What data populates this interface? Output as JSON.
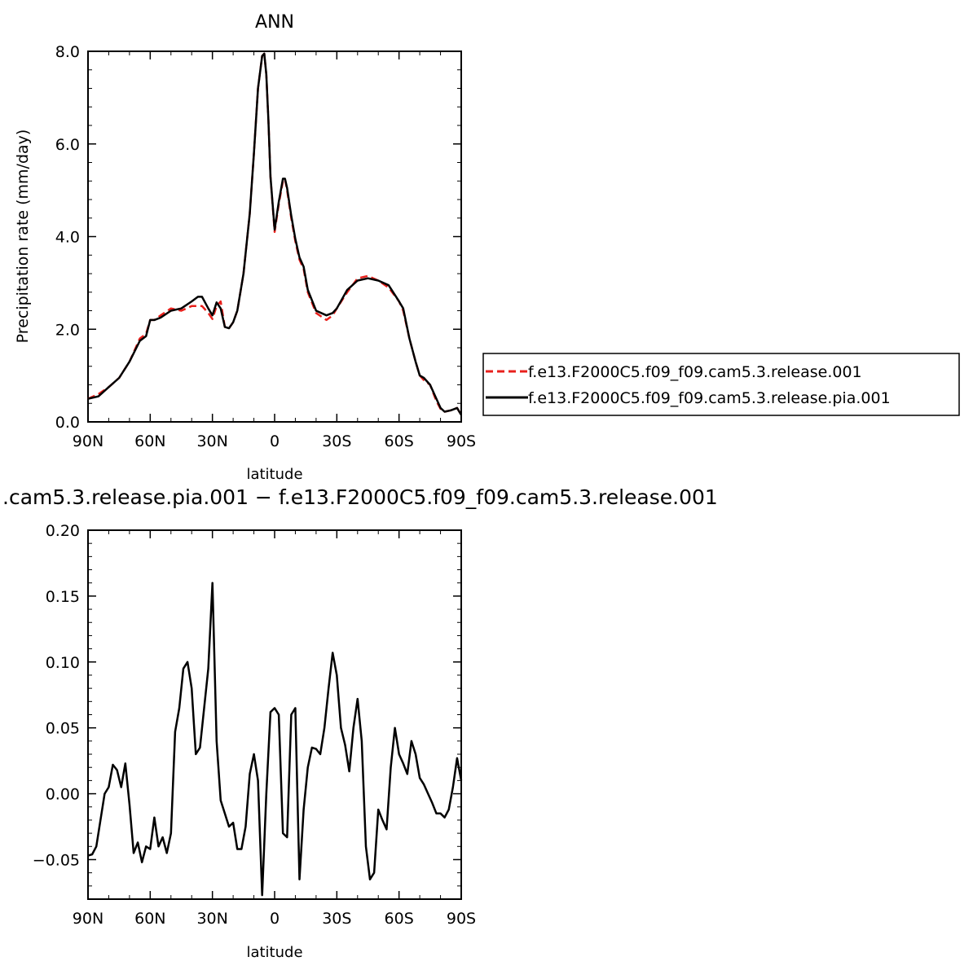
{
  "chart_data": [
    {
      "type": "line",
      "title": "ANN",
      "xlabel": "latitude",
      "ylabel": "Precipitation rate (mm/day)",
      "xlim": [
        -90,
        90
      ],
      "ylim": [
        0,
        8
      ],
      "xticks": [
        {
          "value": -90,
          "label": "90N"
        },
        {
          "value": -60,
          "label": "60N"
        },
        {
          "value": -30,
          "label": "30N"
        },
        {
          "value": 0,
          "label": "0"
        },
        {
          "value": 30,
          "label": "30S"
        },
        {
          "value": 60,
          "label": "60S"
        },
        {
          "value": 90,
          "label": "90S"
        }
      ],
      "yticks": [
        {
          "value": 0,
          "label": "0.0"
        },
        {
          "value": 2,
          "label": "2.0"
        },
        {
          "value": 4,
          "label": "4.0"
        },
        {
          "value": 6,
          "label": "6.0"
        },
        {
          "value": 8,
          "label": "8.0"
        }
      ],
      "legend_position": "right",
      "series": [
        {
          "name": "f.e13.F2000C5.f09_f09.cam5.3.release.001",
          "color": "#e8201c",
          "dash": "dashed",
          "x": [
            -90,
            -85,
            -80,
            -75,
            -70,
            -65,
            -62,
            -60,
            -58,
            -55,
            -50,
            -45,
            -40,
            -37,
            -35,
            -32,
            -30,
            -28,
            -26,
            -24,
            -22,
            -20,
            -18,
            -15,
            -12,
            -10,
            -8,
            -6,
            -5,
            -4,
            -3,
            -2,
            0,
            2,
            4,
            5,
            6,
            8,
            10,
            12,
            14,
            16,
            20,
            25,
            28,
            30,
            35,
            40,
            45,
            50,
            55,
            60,
            62,
            65,
            68,
            70,
            72,
            75,
            78,
            80,
            82,
            85,
            88,
            90
          ],
          "y": [
            0.5,
            0.6,
            0.75,
            0.95,
            1.3,
            1.8,
            1.9,
            2.2,
            2.2,
            2.3,
            2.45,
            2.4,
            2.5,
            2.5,
            2.5,
            2.35,
            2.22,
            2.5,
            2.6,
            2.05,
            2.02,
            2.15,
            2.4,
            3.2,
            4.5,
            5.8,
            7.2,
            7.9,
            7.95,
            7.5,
            6.5,
            5.3,
            4.1,
            4.7,
            5.2,
            5.25,
            5.0,
            4.4,
            3.9,
            3.5,
            3.3,
            2.8,
            2.35,
            2.2,
            2.3,
            2.45,
            2.8,
            3.1,
            3.15,
            3.05,
            2.9,
            2.6,
            2.4,
            1.8,
            1.3,
            1.0,
            0.9,
            0.8,
            0.45,
            0.28,
            0.22,
            0.25,
            0.3,
            0.15
          ]
        },
        {
          "name": "f.e13.F2000C5.f09_f09.cam5.3.release.pia.001",
          "color": "#000000",
          "dash": "solid",
          "x": [
            -90,
            -85,
            -80,
            -75,
            -70,
            -65,
            -62,
            -60,
            -58,
            -55,
            -50,
            -45,
            -40,
            -37,
            -35,
            -32,
            -30,
            -28,
            -26,
            -24,
            -22,
            -20,
            -18,
            -15,
            -12,
            -10,
            -8,
            -6,
            -5,
            -4,
            -3,
            -2,
            0,
            2,
            4,
            5,
            6,
            8,
            10,
            12,
            14,
            16,
            20,
            25,
            28,
            30,
            35,
            40,
            45,
            50,
            55,
            60,
            62,
            65,
            68,
            70,
            72,
            75,
            78,
            80,
            82,
            85,
            88,
            90
          ],
          "y": [
            0.5,
            0.55,
            0.75,
            0.95,
            1.3,
            1.75,
            1.85,
            2.2,
            2.2,
            2.25,
            2.4,
            2.45,
            2.6,
            2.7,
            2.7,
            2.45,
            2.3,
            2.58,
            2.45,
            2.05,
            2.02,
            2.15,
            2.4,
            3.2,
            4.5,
            5.8,
            7.2,
            7.9,
            7.95,
            7.5,
            6.5,
            5.3,
            4.15,
            4.75,
            5.25,
            5.25,
            5.05,
            4.45,
            3.95,
            3.55,
            3.35,
            2.85,
            2.4,
            2.3,
            2.35,
            2.45,
            2.85,
            3.05,
            3.1,
            3.05,
            2.95,
            2.6,
            2.45,
            1.8,
            1.3,
            1.0,
            0.95,
            0.8,
            0.5,
            0.3,
            0.22,
            0.25,
            0.3,
            0.15
          ]
        }
      ]
    },
    {
      "type": "line",
      "title": ".cam5.3.release.pia.001 − f.e13.F2000C5.f09_f09.cam5.3.release.001",
      "xlabel": "latitude",
      "ylabel": "",
      "xlim": [
        -90,
        90
      ],
      "ylim": [
        -0.08,
        0.2
      ],
      "xticks": [
        {
          "value": -90,
          "label": "90N"
        },
        {
          "value": -60,
          "label": "60N"
        },
        {
          "value": -30,
          "label": "30N"
        },
        {
          "value": 0,
          "label": "0"
        },
        {
          "value": 30,
          "label": "30S"
        },
        {
          "value": 60,
          "label": "60S"
        },
        {
          "value": 90,
          "label": "90S"
        }
      ],
      "yticks": [
        {
          "value": -0.05,
          "label": "−0.05"
        },
        {
          "value": 0,
          "label": "0.00"
        },
        {
          "value": 0.05,
          "label": "0.05"
        },
        {
          "value": 0.1,
          "label": "0.10"
        },
        {
          "value": 0.15,
          "label": "0.15"
        },
        {
          "value": 0.2,
          "label": "0.20"
        }
      ],
      "series": [
        {
          "color": "#000000",
          "dash": "solid",
          "x": [
            -90,
            -88,
            -86,
            -84,
            -82,
            -80,
            -78,
            -76,
            -74,
            -72,
            -70,
            -68,
            -66,
            -64,
            -62,
            -60,
            -58,
            -56,
            -54,
            -52,
            -50,
            -48,
            -46,
            -44,
            -42,
            -40,
            -38,
            -36,
            -34,
            -32,
            -30,
            -28,
            -26,
            -24,
            -22,
            -20,
            -18,
            -16,
            -14,
            -12,
            -10,
            -8,
            -6,
            -4,
            -2,
            0,
            2,
            4,
            6,
            8,
            10,
            12,
            14,
            16,
            18,
            20,
            22,
            24,
            26,
            28,
            30,
            32,
            34,
            36,
            38,
            40,
            42,
            44,
            46,
            48,
            50,
            52,
            54,
            56,
            58,
            60,
            62,
            64,
            66,
            68,
            70,
            72,
            74,
            76,
            78,
            80,
            82,
            84,
            86,
            88,
            90
          ],
          "y": [
            -0.047,
            -0.046,
            -0.04,
            -0.02,
            0.0,
            0.005,
            0.022,
            0.018,
            0.005,
            0.023,
            -0.008,
            -0.045,
            -0.037,
            -0.052,
            -0.04,
            -0.042,
            -0.018,
            -0.04,
            -0.033,
            -0.045,
            -0.03,
            0.047,
            0.065,
            0.095,
            0.1,
            0.08,
            0.03,
            0.035,
            0.065,
            0.095,
            0.16,
            0.04,
            -0.005,
            -0.015,
            -0.025,
            -0.022,
            -0.042,
            -0.042,
            -0.025,
            0.015,
            0.03,
            0.01,
            -0.077,
            0.0,
            0.062,
            0.065,
            0.06,
            -0.03,
            -0.033,
            0.06,
            0.065,
            -0.065,
            -0.012,
            0.02,
            0.035,
            0.034,
            0.03,
            0.05,
            0.08,
            0.107,
            0.09,
            0.05,
            0.037,
            0.017,
            0.05,
            0.072,
            0.04,
            -0.04,
            -0.065,
            -0.06,
            -0.012,
            -0.02,
            -0.027,
            0.02,
            0.05,
            0.03,
            0.023,
            0.015,
            0.04,
            0.03,
            0.012,
            0.007,
            0.0,
            -0.007,
            -0.015,
            -0.015,
            -0.018,
            -0.012,
            0.005,
            0.027,
            0.01
          ]
        }
      ]
    }
  ]
}
